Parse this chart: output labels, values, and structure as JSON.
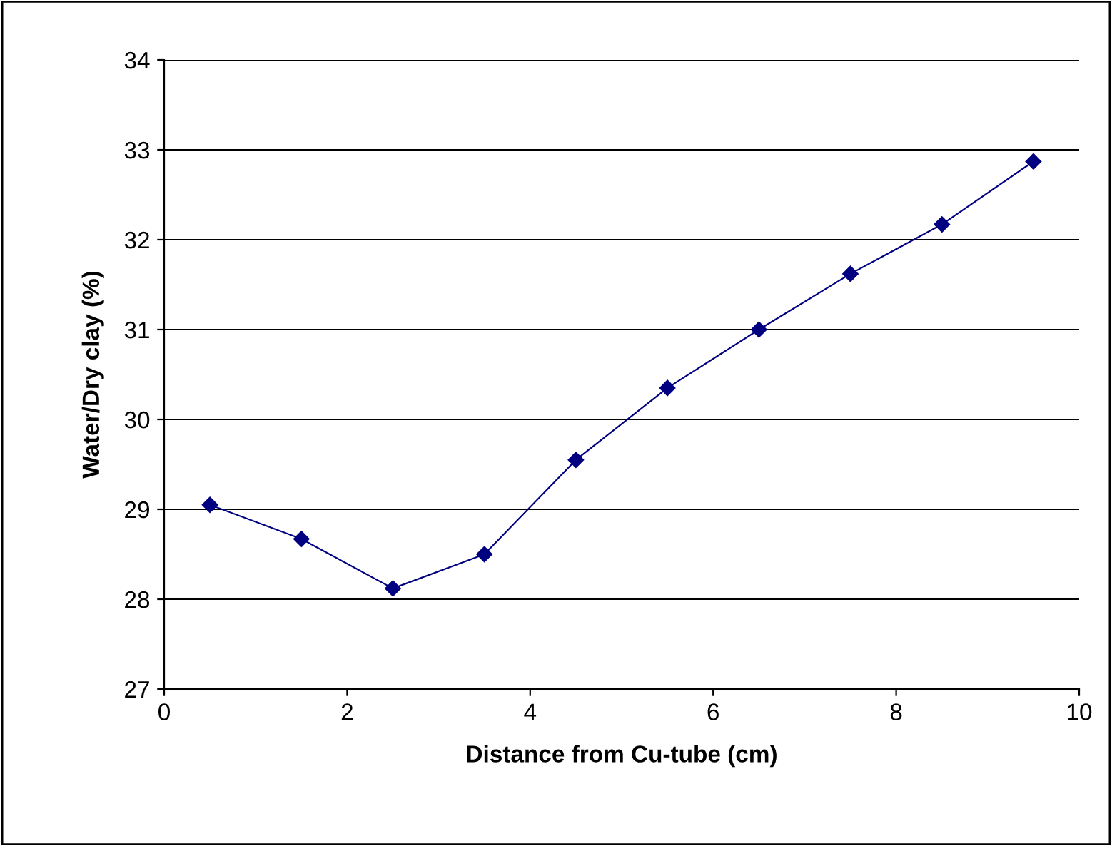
{
  "chart_data": {
    "type": "line",
    "xlabel": "Distance from Cu-tube (cm)",
    "ylabel": "Water/Dry clay (%)",
    "x": [
      0.5,
      1.5,
      2.5,
      3.5,
      4.5,
      5.5,
      6.5,
      7.5,
      8.5,
      9.5
    ],
    "series": [
      {
        "color": "#000080",
        "values": [
          29.05,
          28.67,
          28.12,
          28.5,
          29.55,
          30.35,
          31.0,
          31.62,
          32.17,
          32.87
        ]
      }
    ],
    "xlim": [
      0,
      10
    ],
    "xticks": [
      0,
      2,
      4,
      6,
      8,
      10
    ],
    "ylim": [
      27,
      34
    ],
    "yticks": [
      27,
      28,
      29,
      30,
      31,
      32,
      33,
      34
    ],
    "grid": "y",
    "marker": "diamond",
    "line_style": "solid",
    "legend": false
  }
}
